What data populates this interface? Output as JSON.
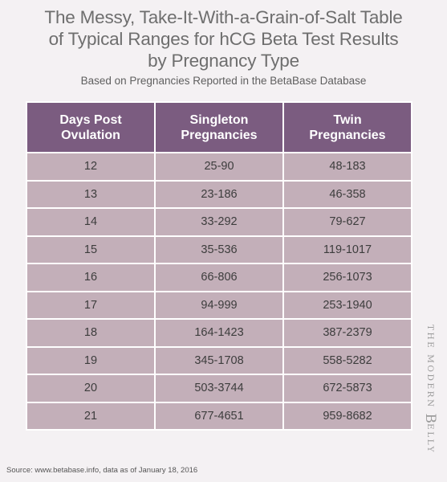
{
  "chart_data": {
    "type": "table",
    "title": "The Messy, Take-It-With-a-Grain-of-Salt Table of Typical Ranges for hCG Beta Test Results by Pregnancy Type",
    "title_lines": [
      "The Messy, Take-It-With-a-Grain-of-Salt Table",
      "of Typical Ranges for hCG Beta Test Results",
      "by Pregnancy Type"
    ],
    "subtitle": "Based on Pregnancies Reported in the BetaBase Database",
    "columns": [
      {
        "line1": "Days Post",
        "line2": "Ovulation"
      },
      {
        "line1": "Singleton",
        "line2": "Pregnancies"
      },
      {
        "line1": "Twin",
        "line2": "Pregnancies"
      }
    ],
    "rows": [
      [
        "12",
        "25-90",
        "48-183"
      ],
      [
        "13",
        "23-186",
        "46-358"
      ],
      [
        "14",
        "33-292",
        "79-627"
      ],
      [
        "15",
        "35-536",
        "119-1017"
      ],
      [
        "16",
        "66-806",
        "256-1073"
      ],
      [
        "17",
        "94-999",
        "253-1940"
      ],
      [
        "18",
        "164-1423",
        "387-2379"
      ],
      [
        "19",
        "345-1708",
        "558-5282"
      ],
      [
        "20",
        "503-3744",
        "672-5873"
      ],
      [
        "21",
        "677-4651",
        "959-8682"
      ]
    ],
    "source": "Source: www.betabase.info, data as of January 18, 2016"
  },
  "watermark": {
    "part1": "THE MODERN ",
    "big_letter": "B",
    "part2": "ELLY"
  },
  "colors": {
    "header_bg": "#7b5c80",
    "cell_bg": "#c3afb9",
    "page_bg": "#f4f1f3",
    "title_text": "#6e6e6e"
  }
}
